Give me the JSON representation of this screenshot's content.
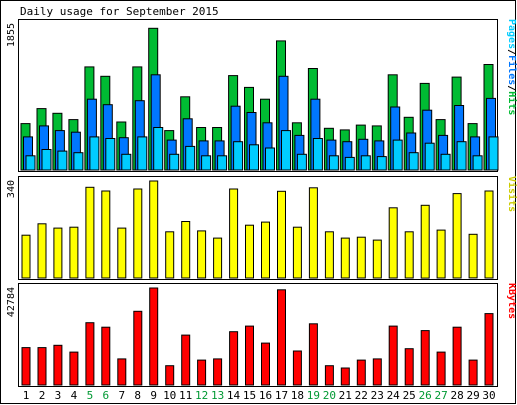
{
  "title": "Daily usage for September 2015",
  "colors": {
    "background": "#ffffff",
    "border": "#000000",
    "hits": "#00bb33",
    "files": "#0077ff",
    "pages": "#00ccff",
    "visits": "#ffff00",
    "kbytes": "#ff0000",
    "weekend_label": "#009933",
    "weekday_label": "#000000"
  },
  "chart_data": [
    {
      "type": "bar",
      "panel": "hits_files_pages",
      "ymax_label": "1855",
      "ylim": [
        0,
        1855
      ],
      "legend": [
        "Pages",
        "/",
        "Files",
        "/",
        "Hits"
      ],
      "legend_colors": [
        "#00ccff",
        "#000000",
        "#0077ff",
        "#000000",
        "#00bb33"
      ],
      "categories": [
        "1",
        "2",
        "3",
        "4",
        "5",
        "6",
        "7",
        "8",
        "9",
        "10",
        "11",
        "12",
        "13",
        "14",
        "15",
        "16",
        "17",
        "18",
        "19",
        "20",
        "21",
        "22",
        "23",
        "24",
        "25",
        "26",
        "27",
        "28",
        "29",
        "30"
      ],
      "weekend_days": [
        "5",
        "6",
        "12",
        "13",
        "19",
        "20",
        "26",
        "27"
      ],
      "series": [
        {
          "name": "Hits",
          "values": [
            590,
            780,
            720,
            640,
            1310,
            1190,
            610,
            1310,
            1800,
            500,
            930,
            540,
            540,
            1200,
            1050,
            900,
            1640,
            600,
            1290,
            530,
            510,
            570,
            560,
            1210,
            670,
            1100,
            640,
            1180,
            590,
            1340
          ]
        },
        {
          "name": "Files",
          "values": [
            420,
            560,
            500,
            480,
            900,
            830,
            410,
            880,
            1210,
            380,
            650,
            370,
            370,
            810,
            730,
            600,
            1190,
            440,
            900,
            380,
            360,
            390,
            370,
            800,
            470,
            760,
            440,
            820,
            420,
            910
          ]
        },
        {
          "name": "Pages",
          "values": [
            180,
            260,
            240,
            220,
            420,
            400,
            200,
            420,
            540,
            200,
            300,
            180,
            180,
            360,
            320,
            280,
            500,
            200,
            400,
            180,
            160,
            180,
            170,
            380,
            220,
            340,
            200,
            360,
            180,
            420
          ]
        }
      ]
    },
    {
      "type": "bar",
      "panel": "visits",
      "ymax_label": "340",
      "ylim": [
        0,
        340
      ],
      "legend": [
        "Visits"
      ],
      "legend_colors": [
        "#cccc00"
      ],
      "categories": [
        "1",
        "2",
        "3",
        "4",
        "5",
        "6",
        "7",
        "8",
        "9",
        "10",
        "11",
        "12",
        "13",
        "14",
        "15",
        "16",
        "17",
        "18",
        "19",
        "20",
        "21",
        "22",
        "23",
        "24",
        "25",
        "26",
        "27",
        "28",
        "29",
        "30"
      ],
      "series": [
        {
          "name": "Visits",
          "values": [
            150,
            190,
            175,
            178,
            318,
            305,
            175,
            312,
            340,
            162,
            198,
            165,
            140,
            312,
            185,
            196,
            304,
            178,
            316,
            162,
            140,
            143,
            133,
            246,
            162,
            255,
            168,
            296,
            153,
            305
          ]
        }
      ]
    },
    {
      "type": "bar",
      "panel": "kbytes",
      "ymax_label": "42784",
      "ylim": [
        0,
        42784
      ],
      "legend": [
        "KBytes"
      ],
      "legend_colors": [
        "#ff0000"
      ],
      "categories": [
        "1",
        "2",
        "3",
        "4",
        "5",
        "6",
        "7",
        "8",
        "9",
        "10",
        "11",
        "12",
        "13",
        "14",
        "15",
        "16",
        "17",
        "18",
        "19",
        "20",
        "21",
        "22",
        "23",
        "24",
        "25",
        "26",
        "27",
        "28",
        "29",
        "30"
      ],
      "series": [
        {
          "name": "KBytes",
          "values": [
            16500,
            16500,
            17500,
            14500,
            27500,
            25500,
            11500,
            32500,
            42784,
            8500,
            22000,
            11000,
            11500,
            23500,
            26000,
            18500,
            42000,
            15000,
            27000,
            8500,
            7500,
            11000,
            11500,
            26000,
            16000,
            24000,
            14500,
            25500,
            11000,
            31500
          ]
        }
      ]
    }
  ]
}
